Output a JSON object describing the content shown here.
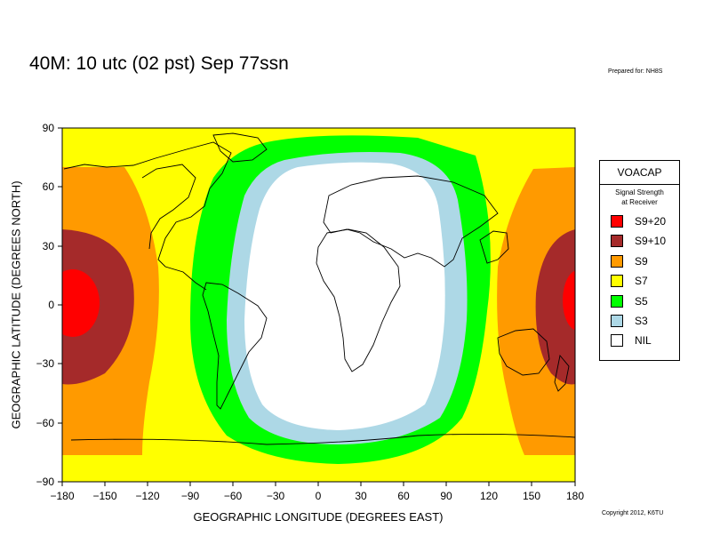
{
  "title": "40M:  10 utc (02 pst) Sep 77ssn",
  "prepared_for": "Prepared for: NH8S",
  "copyright": "Copyright 2012, K6TU",
  "axes": {
    "xlabel": "GEOGRAPHIC LONGITUDE (DEGREES EAST)",
    "ylabel": "GEOGRAPHIC LATITUDE (DEGREES NORTH)",
    "xticks": [
      "−180",
      "−150",
      "−120",
      "−90",
      "−60",
      "−30",
      "0",
      "30",
      "60",
      "90",
      "120",
      "150",
      "180"
    ],
    "yticks": [
      "90",
      "60",
      "30",
      "0",
      "−30",
      "−60",
      "−90"
    ],
    "xlim": [
      -180,
      180
    ],
    "ylim": [
      -90,
      90
    ]
  },
  "legend": {
    "title": "VOACAP",
    "subtitle_line1": "Signal Strength",
    "subtitle_line2": "at Receiver",
    "items": [
      {
        "label": "S9+20",
        "color": "#ff0000"
      },
      {
        "label": "S9+10",
        "color": "#a52a2a"
      },
      {
        "label": "S9",
        "color": "#ff9a00"
      },
      {
        "label": "S7",
        "color": "#ffff00"
      },
      {
        "label": "S5",
        "color": "#00ff00"
      },
      {
        "label": "S3",
        "color": "#add8e6"
      },
      {
        "label": "NIL",
        "color": "#ffffff"
      }
    ]
  },
  "map": {
    "projection": "equirectangular",
    "background_level": "S7",
    "grid": false
  }
}
